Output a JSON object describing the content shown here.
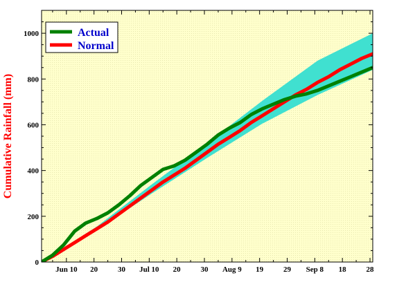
{
  "chart_data": {
    "type": "line",
    "title": "",
    "xlabel": "",
    "ylabel": "Cumulative Rainfall (mm)",
    "ylim": [
      0,
      1100
    ],
    "yticks": [
      0,
      200,
      400,
      600,
      800,
      1000
    ],
    "x_range_days": [
      0,
      120
    ],
    "xticks": [
      {
        "day": 9,
        "label": "Jun 10"
      },
      {
        "day": 19,
        "label": "20"
      },
      {
        "day": 29,
        "label": "30"
      },
      {
        "day": 39,
        "label": "Jul 10"
      },
      {
        "day": 49,
        "label": "20"
      },
      {
        "day": 59,
        "label": "30"
      },
      {
        "day": 69,
        "label": "Aug 9"
      },
      {
        "day": 79,
        "label": "19"
      },
      {
        "day": 89,
        "label": "29"
      },
      {
        "day": 99,
        "label": "Sep 8"
      },
      {
        "day": 109,
        "label": "18"
      },
      {
        "day": 119,
        "label": "28"
      }
    ],
    "grid": false,
    "legend_position": "top-left",
    "background_color": "#ffffcc",
    "band_color": "#40e0d0",
    "series": [
      {
        "name": "Actual",
        "color": "#008000",
        "x": [
          0,
          4,
          8,
          12,
          16,
          20,
          24,
          28,
          32,
          36,
          40,
          44,
          48,
          52,
          56,
          60,
          64,
          68,
          72,
          76,
          80,
          84,
          88,
          92,
          96,
          100,
          104,
          108,
          112,
          116,
          120
        ],
        "y": [
          0,
          30,
          75,
          135,
          170,
          190,
          215,
          250,
          290,
          335,
          370,
          405,
          420,
          445,
          480,
          515,
          555,
          585,
          610,
          645,
          670,
          690,
          710,
          725,
          735,
          750,
          770,
          790,
          810,
          830,
          850
        ]
      },
      {
        "name": "Normal",
        "color": "#ff0000",
        "x": [
          0,
          4,
          8,
          12,
          16,
          20,
          24,
          28,
          32,
          36,
          40,
          44,
          48,
          52,
          56,
          60,
          64,
          68,
          72,
          76,
          80,
          84,
          88,
          92,
          96,
          100,
          104,
          108,
          112,
          116,
          120
        ],
        "y": [
          0,
          25,
          55,
          85,
          115,
          145,
          175,
          210,
          245,
          280,
          315,
          350,
          380,
          410,
          445,
          480,
          515,
          545,
          575,
          610,
          640,
          670,
          700,
          730,
          755,
          785,
          810,
          840,
          865,
          890,
          910
        ]
      },
      {
        "name": "Normal range upper",
        "color": "#40e0d0",
        "x": [
          0,
          20,
          40,
          60,
          80,
          100,
          120
        ],
        "y": [
          0,
          155,
          340,
          520,
          705,
          880,
          1000
        ]
      },
      {
        "name": "Normal range lower",
        "color": "#40e0d0",
        "x": [
          0,
          20,
          40,
          60,
          80,
          100,
          120
        ],
        "y": [
          0,
          140,
          300,
          455,
          605,
          730,
          840
        ]
      }
    ]
  }
}
